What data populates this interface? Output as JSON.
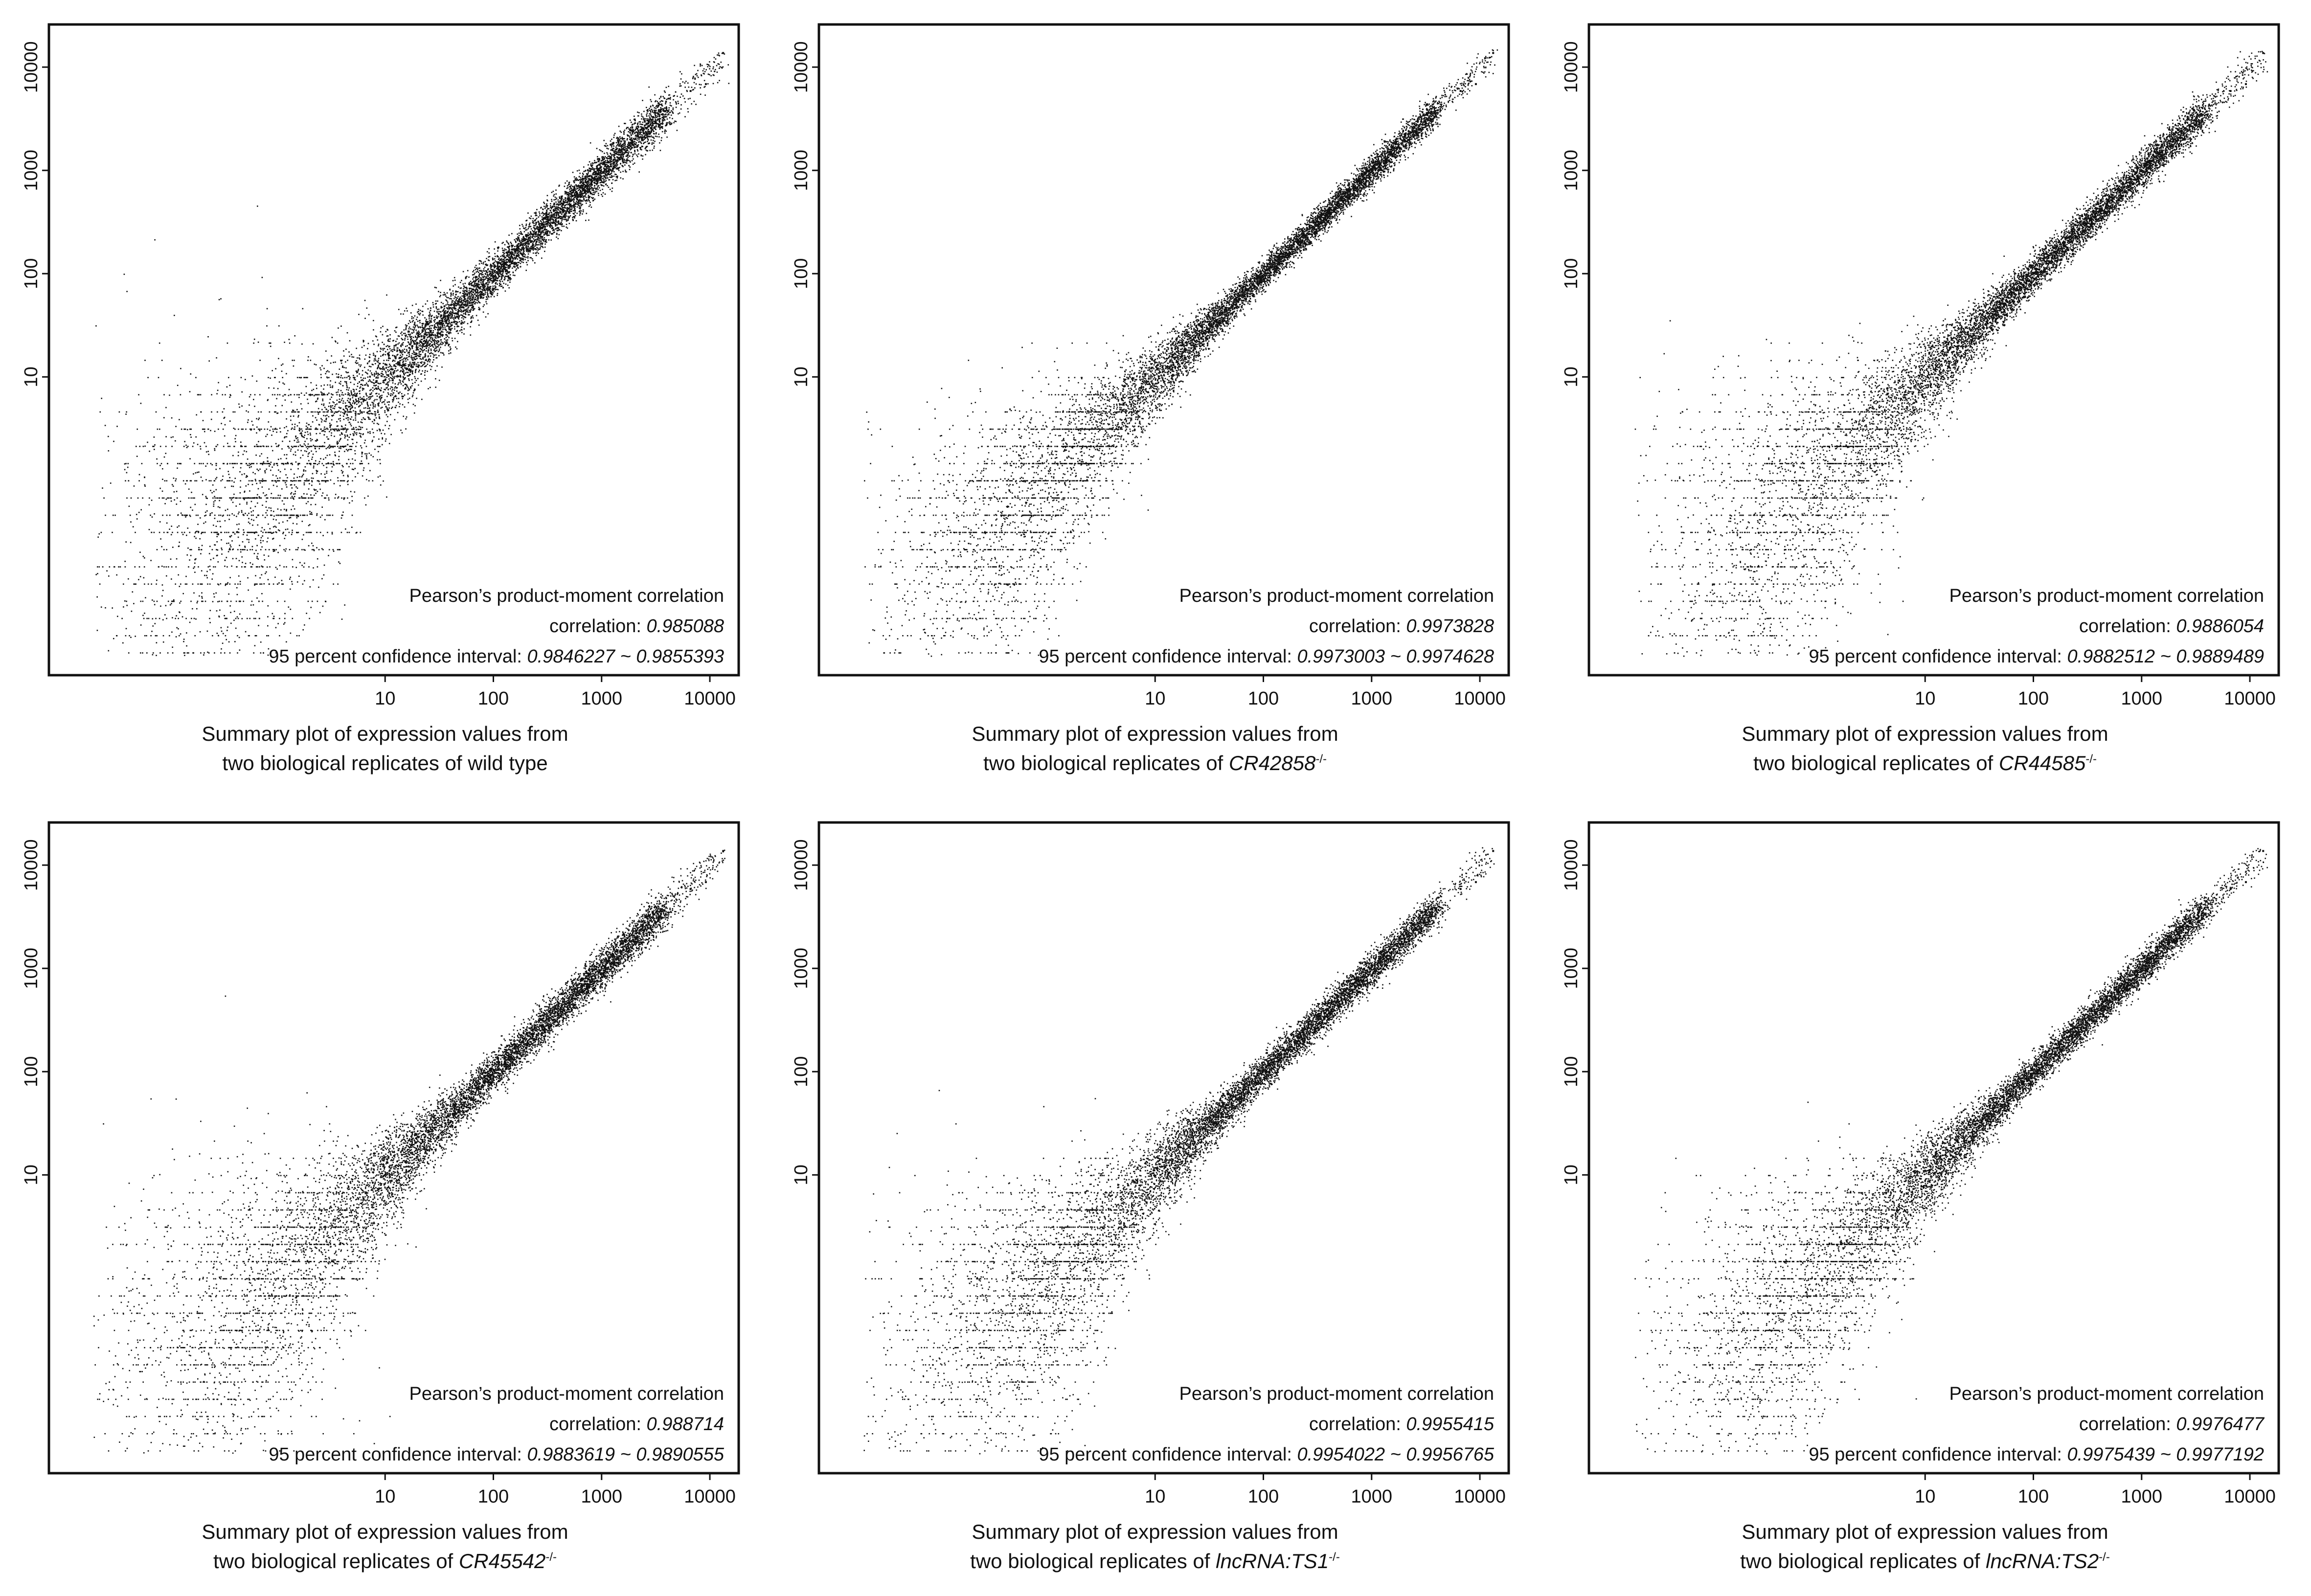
{
  "figure": {
    "stat_title": "Pearson’s product-moment correlation",
    "correlation_label": "correlation:",
    "ci_label": "95 percent confidence interval:",
    "caption_line1": "Summary plot of expression values from",
    "caption_line2_prefix": "two biological replicates of",
    "genotype_superscript": "-/-"
  },
  "chart_data": [
    {
      "type": "scatter",
      "title": "",
      "xlabel": "",
      "ylabel": "",
      "scale": "log10",
      "x_ticks": [
        "10",
        "100",
        "1000",
        "10000"
      ],
      "y_ticks": [
        "10",
        "100",
        "1000",
        "10000"
      ],
      "xlim": [
        0.02,
        15000
      ],
      "ylim": [
        0.02,
        15000
      ],
      "grid": false,
      "correlation": "0.985088",
      "ci": "0.9846227 ~ 0.9855393",
      "genotype": "wild type",
      "genotype_italic": false,
      "spread": 0.42,
      "description": "about 10,000 genes; replicate 1 vs replicate 2 expression, tightly clustered on the diagonal from ~0.05 to ~15000"
    },
    {
      "type": "scatter",
      "title": "",
      "xlabel": "",
      "ylabel": "",
      "scale": "log10",
      "x_ticks": [
        "10",
        "100",
        "1000",
        "10000"
      ],
      "y_ticks": [
        "10",
        "100",
        "1000",
        "10000"
      ],
      "xlim": [
        0.02,
        15000
      ],
      "ylim": [
        0.02,
        15000
      ],
      "grid": false,
      "correlation": "0.9973828",
      "ci": "0.9973003 ~ 0.9974628",
      "genotype": "CR42858",
      "genotype_italic": true,
      "spread": 0.3,
      "description": "about 10,000 genes; replicate 1 vs replicate 2 expression, tightly clustered on the diagonal"
    },
    {
      "type": "scatter",
      "title": "",
      "xlabel": "",
      "ylabel": "",
      "scale": "log10",
      "x_ticks": [
        "10",
        "100",
        "1000",
        "10000"
      ],
      "y_ticks": [
        "10",
        "100",
        "1000",
        "10000"
      ],
      "xlim": [
        0.02,
        15000
      ],
      "ylim": [
        0.02,
        15000
      ],
      "grid": false,
      "correlation": "0.9886054",
      "ci": "0.9882512 ~ 0.9889489",
      "genotype": "CR44585",
      "genotype_italic": true,
      "spread": 0.38,
      "description": "about 10,000 genes; replicate 1 vs replicate 2 expression, tightly clustered on the diagonal"
    },
    {
      "type": "scatter",
      "title": "",
      "xlabel": "",
      "ylabel": "",
      "scale": "log10",
      "x_ticks": [
        "10",
        "100",
        "1000",
        "10000"
      ],
      "y_ticks": [
        "10",
        "100",
        "1000",
        "10000"
      ],
      "xlim": [
        0.02,
        15000
      ],
      "ylim": [
        0.02,
        15000
      ],
      "grid": false,
      "correlation": "0.988714",
      "ci": "0.9883619 ~ 0.9890555",
      "genotype": "CR45542",
      "genotype_italic": true,
      "spread": 0.4,
      "description": "about 10,000 genes; replicate 1 vs replicate 2 expression, tightly clustered on the diagonal"
    },
    {
      "type": "scatter",
      "title": "",
      "xlabel": "",
      "ylabel": "",
      "scale": "log10",
      "x_ticks": [
        "10",
        "100",
        "1000",
        "10000"
      ],
      "y_ticks": [
        "10",
        "100",
        "1000",
        "10000"
      ],
      "xlim": [
        0.02,
        15000
      ],
      "ylim": [
        0.02,
        15000
      ],
      "grid": false,
      "correlation": "0.9955415",
      "ci": "0.9954022 ~ 0.9956765",
      "genotype": "lncRNA:TS1",
      "genotype_italic": true,
      "spread": 0.36,
      "description": "about 10,000 genes; replicate 1 vs replicate 2 expression, tightly clustered on the diagonal"
    },
    {
      "type": "scatter",
      "title": "",
      "xlabel": "",
      "ylabel": "",
      "scale": "log10",
      "x_ticks": [
        "10",
        "100",
        "1000",
        "10000"
      ],
      "y_ticks": [
        "10",
        "100",
        "1000",
        "10000"
      ],
      "xlim": [
        0.02,
        15000
      ],
      "ylim": [
        0.02,
        15000
      ],
      "grid": false,
      "correlation": "0.9976477",
      "ci": "0.9975439 ~ 0.9977192",
      "genotype": "lncRNA:TS2",
      "genotype_italic": true,
      "spread": 0.34,
      "description": "about 10,000 genes; replicate 1 vs replicate 2 expression, tightly clustered on the diagonal"
    }
  ]
}
